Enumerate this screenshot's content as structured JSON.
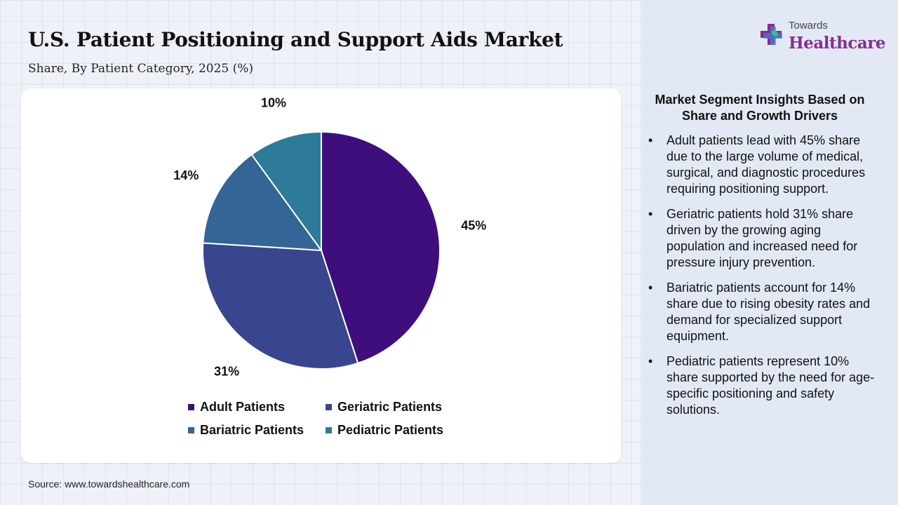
{
  "header": {
    "title": "U.S. Patient Positioning and Support Aids Market",
    "subtitle": "Share, By Patient Category, 2025 (%)"
  },
  "chart_data": {
    "type": "pie",
    "categories": [
      "Adult Patients",
      "Geriatric Patients",
      "Bariatric Patients",
      "Pediatric Patients"
    ],
    "values": [
      45,
      31,
      14,
      10
    ],
    "data_labels": [
      "45%",
      "31%",
      "14%",
      "10%"
    ],
    "colors": [
      "#3d0e7c",
      "#39468e",
      "#336596",
      "#2d7b99"
    ],
    "start": "12 o'clock",
    "direction": "clockwise",
    "legend_position": "bottom"
  },
  "source": "Source: www.towardshealthcare.com",
  "logo": {
    "small_text": "Towards",
    "big_text": "Healthcare",
    "brand_color": "#8a2c8f"
  },
  "insights": {
    "title": "Market Segment Insights Based on Share and Growth Drivers",
    "bullet": "•",
    "items": [
      "Adult patients lead with 45% share due to the large volume of medical, surgical, and diagnostic procedures requiring positioning support.",
      "Geriatric patients hold 31% share driven by the growing aging population and increased need for pressure injury prevention.",
      "Bariatric patients account for 14% share due to rising obesity rates and demand for specialized support equipment.",
      "Pediatric patients represent 10% share supported by the need for age-specific positioning and safety solutions."
    ]
  }
}
